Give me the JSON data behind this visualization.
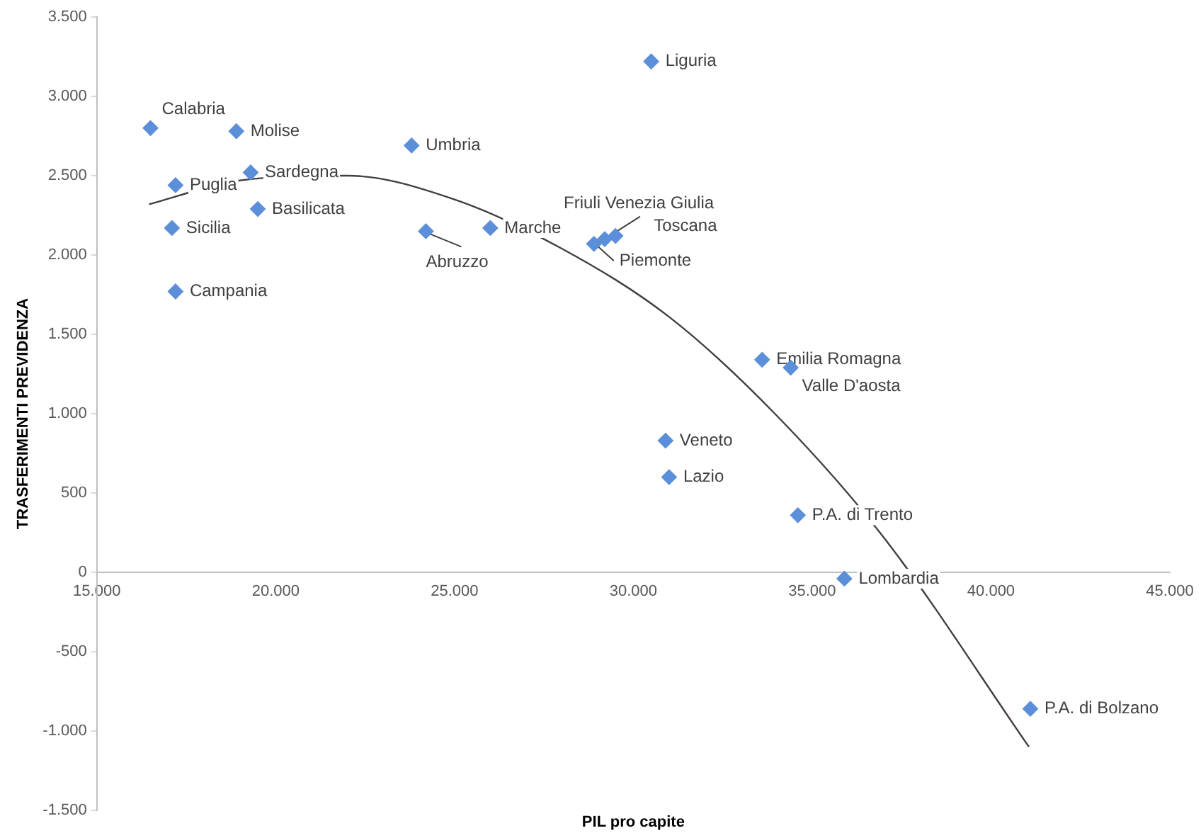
{
  "chart_data": {
    "type": "scatter",
    "xlabel": "PIL pro capite",
    "ylabel": "TRASFERIMENTI PREVIDENZA",
    "xlim": [
      15000,
      45000
    ],
    "ylim": [
      -1500,
      3500
    ],
    "xticks": [
      {
        "value": 15000,
        "label": "15.000"
      },
      {
        "value": 20000,
        "label": "20.000"
      },
      {
        "value": 25000,
        "label": "25.000"
      },
      {
        "value": 30000,
        "label": "30.000"
      },
      {
        "value": 35000,
        "label": "35.000"
      },
      {
        "value": 40000,
        "label": "40.000"
      },
      {
        "value": 45000,
        "label": "45.000"
      }
    ],
    "yticks": [
      {
        "value": -1500,
        "label": "-1.500"
      },
      {
        "value": -1000,
        "label": "-1.000"
      },
      -500,
      0,
      500,
      {
        "value": 1000,
        "label": "1.000"
      },
      {
        "value": 1500,
        "label": "1.500"
      },
      {
        "value": 2000,
        "label": "2.000"
      },
      {
        "value": 2500,
        "label": "2.500"
      },
      {
        "value": 3000,
        "label": "3.000"
      },
      {
        "value": 3500,
        "label": "3.500"
      }
    ],
    "grid": false,
    "legend": false,
    "marker": "diamond",
    "series": [
      {
        "type": "scatter",
        "color": "#5b8fd9",
        "x": [
          16500,
          18900,
          17200,
          19300,
          17100,
          19500,
          17200,
          23800,
          24200,
          26000,
          30500,
          28900,
          29200,
          29500,
          33600,
          34400,
          30900,
          31000,
          34600,
          35900,
          41100
        ],
        "values": [
          2800,
          2780,
          2440,
          2520,
          2170,
          2290,
          1770,
          2690,
          2150,
          2170,
          3220,
          2070,
          2100,
          2120,
          1340,
          1290,
          830,
          600,
          360,
          -40,
          -860
        ]
      },
      {
        "type": "line",
        "color": "#404040",
        "marker": "none",
        "line_style": "solid",
        "x": [
          16460,
          19000,
          22000,
          25000,
          28000,
          31000,
          34000,
          37000,
          41060
        ],
        "values": [
          2320,
          2470,
          2500,
          2350,
          2040,
          1610,
          990,
          220,
          -1100
        ]
      }
    ],
    "annotations": [
      {
        "text": "Calabria",
        "x": 16500,
        "y": 2800
      },
      {
        "text": "Molise",
        "x": 18900,
        "y": 2780
      },
      {
        "text": "Puglia",
        "x": 17200,
        "y": 2440
      },
      {
        "text": "Sardegna",
        "x": 19300,
        "y": 2520
      },
      {
        "text": "Sicilia",
        "x": 17100,
        "y": 2170
      },
      {
        "text": "Basilicata",
        "x": 19500,
        "y": 2290
      },
      {
        "text": "Campania",
        "x": 17200,
        "y": 1770
      },
      {
        "text": "Umbria",
        "x": 23800,
        "y": 2690
      },
      {
        "text": "Abruzzo",
        "x": 24200,
        "y": 2150
      },
      {
        "text": "Marche",
        "x": 26000,
        "y": 2170
      },
      {
        "text": "Liguria",
        "x": 30500,
        "y": 3220
      },
      {
        "text": "Piemonte",
        "x": 28900,
        "y": 2070
      },
      {
        "text": "Friuli Venezia Giulia",
        "x": 29200,
        "y": 2100
      },
      {
        "text": "Toscana",
        "x": 29500,
        "y": 2120
      },
      {
        "text": "Emilia Romagna",
        "x": 33600,
        "y": 1340
      },
      {
        "text": "Valle D'aosta",
        "x": 34400,
        "y": 1290
      },
      {
        "text": "Veneto",
        "x": 30900,
        "y": 830
      },
      {
        "text": "Lazio",
        "x": 31000,
        "y": 600
      },
      {
        "text": "P.A. di Trento",
        "x": 34600,
        "y": 360
      },
      {
        "text": "Lombardia",
        "x": 35900,
        "y": -40
      },
      {
        "text": "P.A. di Bolzano",
        "x": 41100,
        "y": -860
      }
    ]
  }
}
